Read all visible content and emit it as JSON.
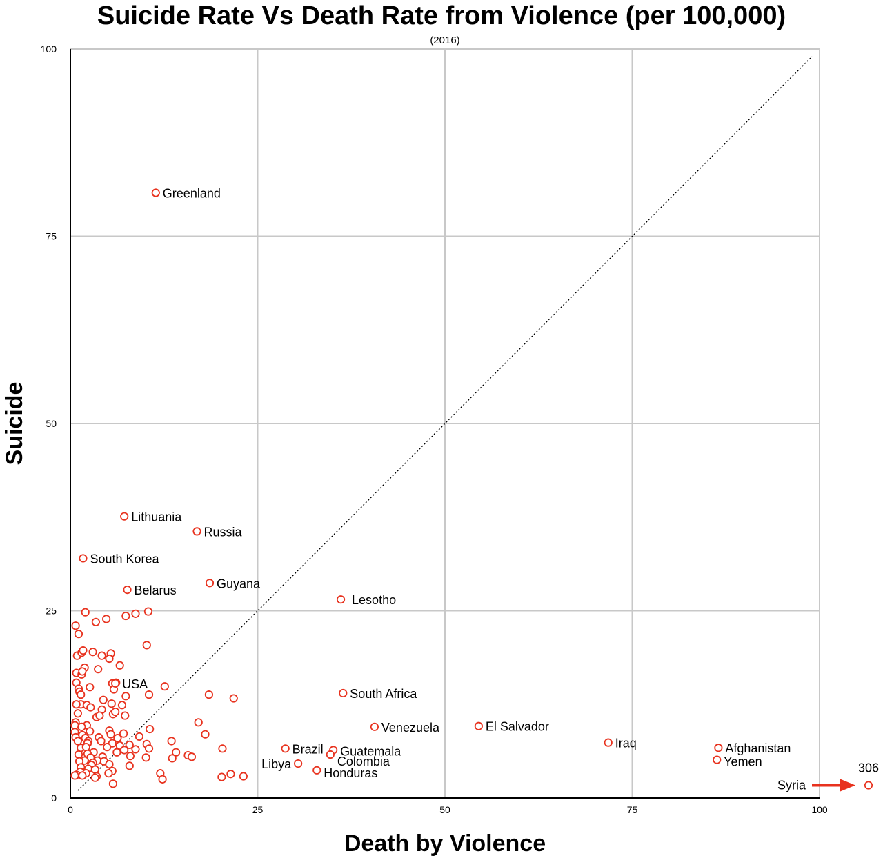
{
  "chart_data": {
    "type": "scatter",
    "title": "Suicide Rate Vs Death Rate from Violence (per 100,000)",
    "subtitle": "(2016)",
    "xlabel": "Death by Violence",
    "ylabel": "Suicide",
    "xlim": [
      0,
      100
    ],
    "ylim": [
      0,
      100
    ],
    "xticks": [
      "0",
      "25",
      "50",
      "75",
      "100"
    ],
    "yticks": [
      "0",
      "25",
      "50",
      "75",
      "100"
    ],
    "reference_line": "y = x",
    "off_scale": {
      "label": "Syria",
      "value_label": "306",
      "x": 306,
      "y": 1.7,
      "accent": "#e8321e"
    },
    "labeled_points": [
      {
        "name": "Greenland",
        "x": 11.4,
        "y": 80.8
      },
      {
        "name": "Lithuania",
        "x": 7.2,
        "y": 37.6
      },
      {
        "name": "Russia",
        "x": 16.9,
        "y": 35.6
      },
      {
        "name": "South Korea",
        "x": 1.7,
        "y": 32.0
      },
      {
        "name": "Belarus",
        "x": 7.6,
        "y": 27.8
      },
      {
        "name": "Guyana",
        "x": 18.6,
        "y": 28.7
      },
      {
        "name": "Lesotho",
        "x": 36.1,
        "y": 26.5
      },
      {
        "name": "USA",
        "x": 6.0,
        "y": 15.3
      },
      {
        "name": "South Africa",
        "x": 36.4,
        "y": 14.0
      },
      {
        "name": "Venezuela",
        "x": 40.6,
        "y": 9.5
      },
      {
        "name": "El Salvador",
        "x": 54.5,
        "y": 9.6
      },
      {
        "name": "Iraq",
        "x": 71.8,
        "y": 7.4
      },
      {
        "name": "Afghanistan",
        "x": 86.5,
        "y": 6.7
      },
      {
        "name": "Yemen",
        "x": 86.3,
        "y": 5.1
      },
      {
        "name": "Brazil",
        "x": 28.7,
        "y": 6.6
      },
      {
        "name": "Guatemala",
        "x": 35.1,
        "y": 6.4
      },
      {
        "name": "Colombia",
        "x": 34.7,
        "y": 5.8
      },
      {
        "name": "Libya",
        "x": 30.4,
        "y": 4.6
      },
      {
        "name": "Honduras",
        "x": 32.9,
        "y": 3.7
      }
    ],
    "unlabeled_points": [
      [
        0.7,
        23.0
      ],
      [
        1.1,
        21.9
      ],
      [
        2.0,
        24.8
      ],
      [
        3.4,
        23.5
      ],
      [
        4.8,
        23.9
      ],
      [
        7.4,
        24.3
      ],
      [
        8.7,
        24.6
      ],
      [
        10.4,
        24.9
      ],
      [
        0.9,
        19.0
      ],
      [
        1.5,
        19.4
      ],
      [
        1.7,
        19.7
      ],
      [
        3.0,
        19.5
      ],
      [
        4.2,
        19.0
      ],
      [
        5.4,
        19.3
      ],
      [
        5.2,
        18.6
      ],
      [
        10.2,
        20.4
      ],
      [
        6.6,
        17.7
      ],
      [
        1.9,
        17.4
      ],
      [
        3.7,
        17.2
      ],
      [
        0.8,
        16.7
      ],
      [
        1.5,
        16.5
      ],
      [
        1.6,
        16.9
      ],
      [
        0.8,
        15.4
      ],
      [
        5.6,
        15.3
      ],
      [
        5.8,
        14.5
      ],
      [
        1.1,
        14.6
      ],
      [
        1.2,
        14.2
      ],
      [
        2.6,
        14.8
      ],
      [
        6.1,
        15.4
      ],
      [
        12.6,
        14.9
      ],
      [
        1.4,
        13.8
      ],
      [
        7.4,
        13.6
      ],
      [
        10.5,
        13.8
      ],
      [
        18.5,
        13.8
      ],
      [
        21.8,
        13.3
      ],
      [
        4.4,
        13.1
      ],
      [
        1.4,
        12.5
      ],
      [
        0.8,
        12.5
      ],
      [
        2.2,
        12.4
      ],
      [
        2.7,
        12.1
      ],
      [
        5.5,
        12.6
      ],
      [
        6.9,
        12.4
      ],
      [
        4.2,
        11.8
      ],
      [
        1.0,
        11.3
      ],
      [
        5.7,
        11.2
      ],
      [
        6.0,
        11.5
      ],
      [
        7.3,
        11.0
      ],
      [
        3.5,
        10.8
      ],
      [
        3.9,
        11.0
      ],
      [
        0.7,
        10.1
      ],
      [
        0.6,
        9.7
      ],
      [
        2.2,
        9.7
      ],
      [
        1.5,
        9.5
      ],
      [
        17.1,
        10.1
      ],
      [
        10.6,
        9.2
      ],
      [
        5.2,
        9.0
      ],
      [
        2.6,
        8.9
      ],
      [
        7.1,
        8.6
      ],
      [
        5.4,
        8.5
      ],
      [
        0.6,
        8.8
      ],
      [
        1.6,
        8.4
      ],
      [
        9.2,
        8.2
      ],
      [
        18.0,
        8.5
      ],
      [
        0.7,
        8.1
      ],
      [
        2.0,
        8.0
      ],
      [
        3.8,
        8.1
      ],
      [
        6.3,
        8.0
      ],
      [
        2.4,
        7.6
      ],
      [
        1.0,
        7.6
      ],
      [
        4.1,
        7.6
      ],
      [
        13.5,
        7.6
      ],
      [
        2.3,
        7.3
      ],
      [
        5.6,
        7.3
      ],
      [
        7.9,
        7.1
      ],
      [
        10.2,
        7.2
      ],
      [
        6.6,
        7.0
      ],
      [
        1.4,
        6.7
      ],
      [
        2.1,
        6.8
      ],
      [
        4.9,
        6.8
      ],
      [
        10.5,
        6.6
      ],
      [
        8.7,
        6.5
      ],
      [
        7.2,
        6.4
      ],
      [
        20.3,
        6.6
      ],
      [
        6.2,
        6.1
      ],
      [
        3.1,
        6.1
      ],
      [
        2.3,
        5.9
      ],
      [
        1.1,
        5.8
      ],
      [
        14.1,
        6.1
      ],
      [
        15.7,
        5.7
      ],
      [
        16.2,
        5.5
      ],
      [
        2.7,
        5.4
      ],
      [
        4.3,
        5.5
      ],
      [
        8.0,
        5.6
      ],
      [
        10.1,
        5.4
      ],
      [
        13.6,
        5.3
      ],
      [
        1.9,
        5.0
      ],
      [
        3.6,
        5.0
      ],
      [
        1.2,
        4.9
      ],
      [
        3.0,
        4.7
      ],
      [
        4.5,
        4.9
      ],
      [
        2.8,
        4.4
      ],
      [
        5.2,
        4.5
      ],
      [
        7.9,
        4.3
      ],
      [
        1.4,
        4.1
      ],
      [
        2.4,
        3.9
      ],
      [
        3.3,
        3.8
      ],
      [
        5.6,
        3.6
      ],
      [
        1.3,
        3.5
      ],
      [
        2.1,
        3.3
      ],
      [
        5.1,
        3.3
      ],
      [
        0.8,
        3.1
      ],
      [
        0.6,
        3.0
      ],
      [
        1.6,
        3.0
      ],
      [
        3.5,
        2.9
      ],
      [
        3.3,
        2.7
      ],
      [
        12.0,
        3.3
      ],
      [
        12.3,
        2.5
      ],
      [
        20.2,
        2.8
      ],
      [
        21.4,
        3.2
      ],
      [
        23.1,
        2.9
      ],
      [
        5.7,
        1.9
      ]
    ]
  }
}
